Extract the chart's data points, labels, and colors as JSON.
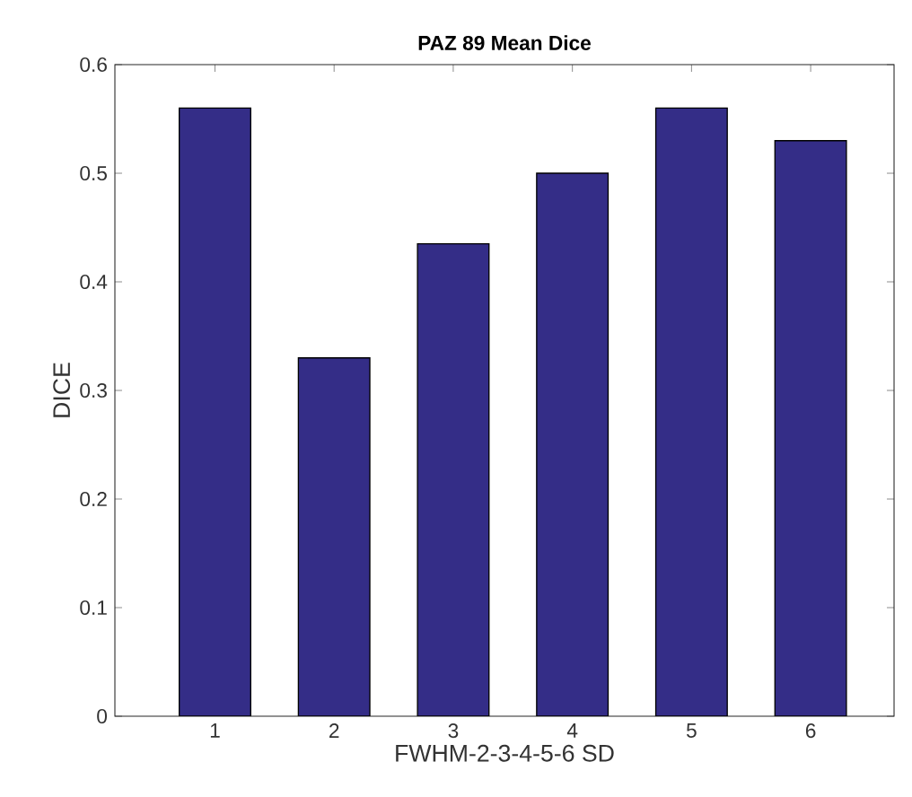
{
  "chart_data": {
    "type": "bar",
    "title": "PAZ 89 Mean Dice",
    "xlabel": "FWHM-2-3-4-5-6 SD",
    "ylabel": "DICE",
    "categories": [
      "1",
      "2",
      "3",
      "4",
      "5",
      "6"
    ],
    "values": [
      0.56,
      0.33,
      0.435,
      0.5,
      0.56,
      0.53
    ],
    "color": "#342d87",
    "ylim": [
      0,
      0.6
    ],
    "yticks": [
      0,
      0.1,
      0.2,
      0.3,
      0.4,
      0.5,
      0.6
    ],
    "grid": false
  }
}
